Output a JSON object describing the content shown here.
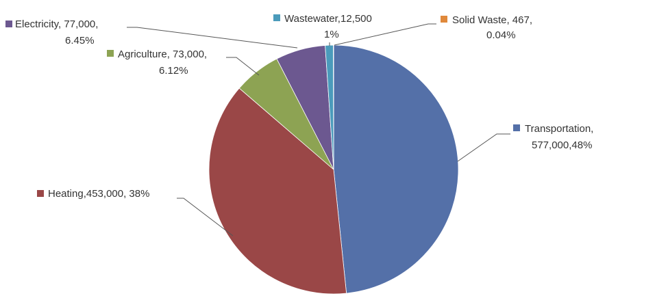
{
  "chart_data": {
    "type": "pie",
    "labels": [
      [
        "Transportation,",
        "577,000,48%"
      ],
      [
        "Heating,453,000, 38%"
      ],
      [
        "Agriculture, 73,000,",
        "6.12%"
      ],
      [
        "Electricity, 77,000,",
        "6.45%"
      ],
      [
        "Wastewater,12,500",
        "1%"
      ],
      [
        "Solid Waste, 467,",
        "0.04%"
      ]
    ],
    "values": [
      577000,
      453000,
      73000,
      77000,
      12500,
      467
    ],
    "colors": [
      "#5470a8",
      "#9a4747",
      "#8da353",
      "#6c5890",
      "#4b9bbb",
      "#e0893b"
    ]
  }
}
